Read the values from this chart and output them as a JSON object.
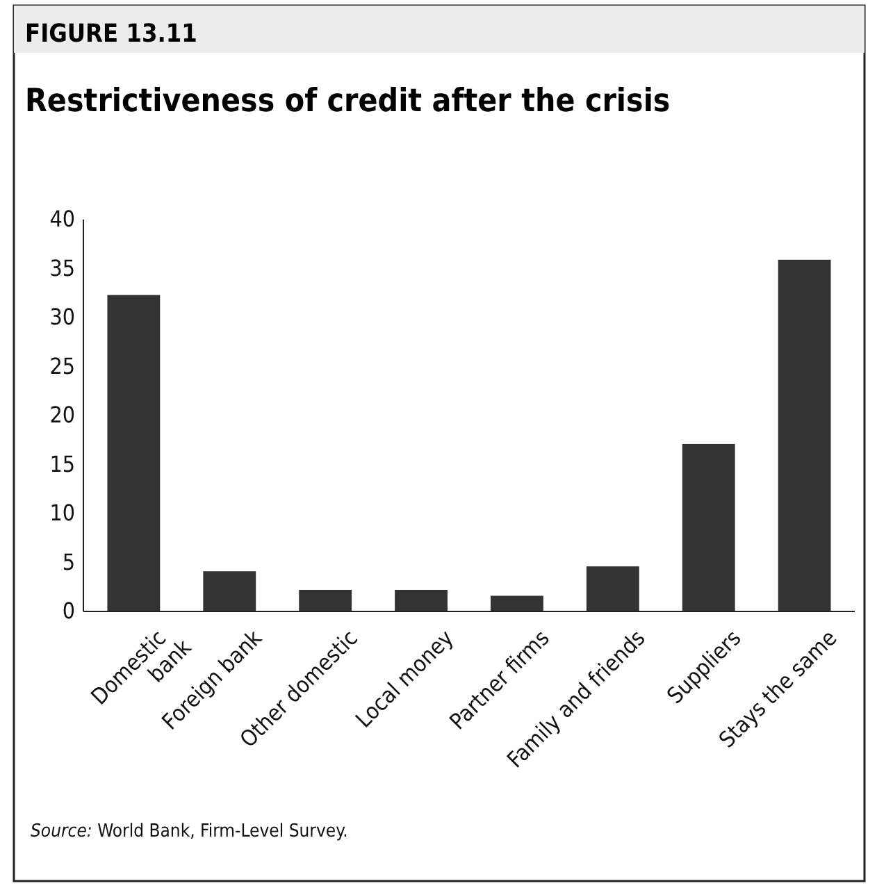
{
  "chart_data": {
    "type": "bar",
    "subtitle": "FIGURE 13.11",
    "title": "Restrictiveness of credit after the crisis",
    "categories": [
      "Domestic\nbank",
      "Foreign bank",
      "Other domestic",
      "Local money",
      "Partner firms",
      "Family and friends",
      "Suppliers",
      "Stays the same"
    ],
    "values": [
      32.3,
      4.1,
      2.2,
      2.2,
      1.6,
      4.6,
      17.1,
      35.9
    ],
    "color": "#333333",
    "ylim": [
      0,
      40
    ],
    "yticks": [
      0,
      5,
      10,
      15,
      20,
      25,
      30,
      35,
      40
    ],
    "grid": false,
    "annotations": [
      "Source: World Bank, Firm-Level Survey."
    ]
  }
}
